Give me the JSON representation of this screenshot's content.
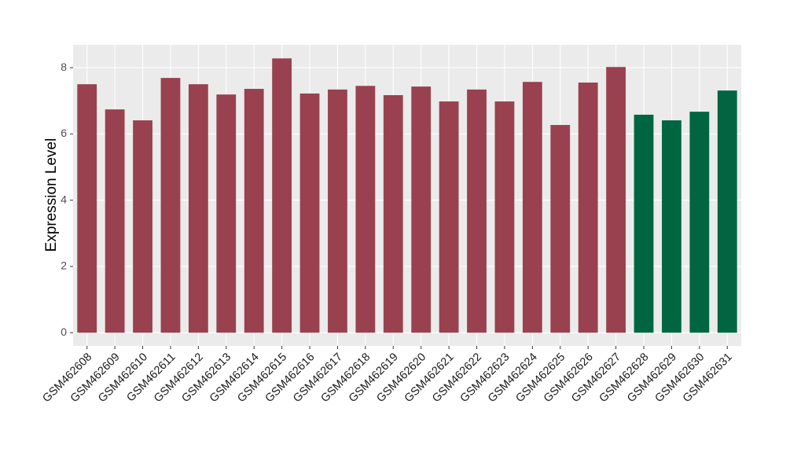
{
  "chart_data": {
    "type": "bar",
    "y_label": "Expression Level",
    "categories": [
      "GSM462608",
      "GSM462609",
      "GSM462610",
      "GSM462611",
      "GSM462612",
      "GSM462613",
      "GSM462614",
      "GSM462615",
      "GSM462616",
      "GSM462617",
      "GSM462618",
      "GSM462619",
      "GSM462620",
      "GSM462621",
      "GSM462622",
      "GSM462623",
      "GSM462624",
      "GSM462625",
      "GSM462626",
      "GSM462627",
      "GSM462628",
      "GSM462629",
      "GSM462630",
      "GSM462631"
    ],
    "values": [
      7.5,
      6.74,
      6.41,
      7.69,
      7.5,
      7.19,
      7.36,
      8.28,
      7.22,
      7.34,
      7.45,
      7.17,
      7.43,
      6.98,
      7.34,
      6.98,
      7.57,
      6.27,
      7.55,
      8.02,
      6.58,
      6.41,
      6.67,
      7.31
    ],
    "colors": [
      "#99414f",
      "#99414f",
      "#99414f",
      "#99414f",
      "#99414f",
      "#99414f",
      "#99414f",
      "#99414f",
      "#99414f",
      "#99414f",
      "#99414f",
      "#99414f",
      "#99414f",
      "#99414f",
      "#99414f",
      "#99414f",
      "#99414f",
      "#99414f",
      "#99414f",
      "#99414f",
      "#006642",
      "#006642",
      "#006642",
      "#006642"
    ],
    "ylim": [
      -0.4,
      8.69
    ],
    "yticks": [
      0,
      2,
      4,
      6,
      8
    ],
    "grid": true
  }
}
